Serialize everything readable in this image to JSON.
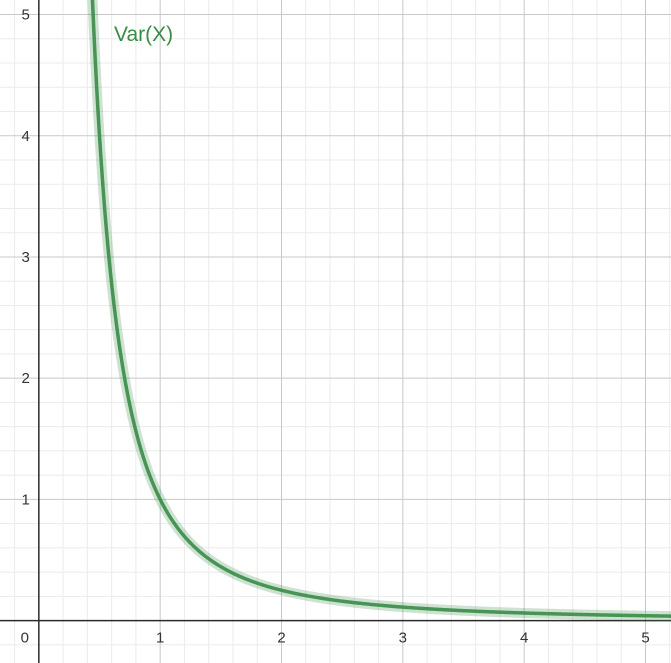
{
  "chart_data": {
    "type": "line",
    "title": "",
    "xlabel": "",
    "ylabel": "",
    "xlim": [
      -0.32,
      5.21
    ],
    "ylim": [
      -0.35,
      5.12
    ],
    "x_ticks": [
      {
        "value": 0,
        "label": "0"
      },
      {
        "value": 1,
        "label": "1"
      },
      {
        "value": 2,
        "label": "2"
      },
      {
        "value": 3,
        "label": "3"
      },
      {
        "value": 4,
        "label": "4"
      },
      {
        "value": 5,
        "label": "5"
      }
    ],
    "y_ticks": [
      {
        "value": 1,
        "label": "1"
      },
      {
        "value": 2,
        "label": "2"
      },
      {
        "value": 3,
        "label": "3"
      },
      {
        "value": 4,
        "label": "4"
      },
      {
        "value": 5,
        "label": "5"
      }
    ],
    "minor_grid_step": 0.2,
    "grid": true,
    "series": [
      {
        "name": "Var(X)",
        "color": "#388c46",
        "x": [
          0.44,
          0.5,
          0.6,
          0.7,
          0.8,
          1.0,
          1.25,
          1.5,
          2.0,
          2.5,
          3.0,
          3.5,
          4.0,
          4.5,
          5.0,
          5.21
        ],
        "y": [
          5.17,
          4.0,
          2.78,
          2.04,
          1.56,
          1.0,
          0.64,
          0.444,
          0.25,
          0.16,
          0.111,
          0.082,
          0.0625,
          0.049,
          0.04,
          0.037
        ]
      }
    ],
    "curve_label_anchor": {
      "x": 0.62,
      "y": 4.78
    }
  }
}
